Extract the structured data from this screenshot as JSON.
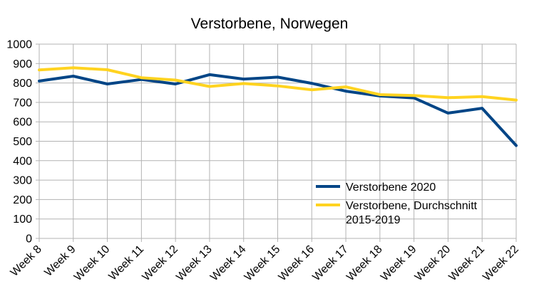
{
  "chart_data": {
    "type": "line",
    "title": "Verstorbene, Norwegen",
    "xlabel": "",
    "ylabel": "",
    "categories": [
      "Week 8",
      "Week 9",
      "Week 10",
      "Week 11",
      "Week 12",
      "Week 13",
      "Week 14",
      "Week 15",
      "Week 16",
      "Week 17",
      "Week 18",
      "Week 19",
      "Week 20",
      "Week 21",
      "Week 22"
    ],
    "ylim": [
      0,
      1000
    ],
    "yticks": [
      "0",
      "100",
      "200",
      "300",
      "400",
      "500",
      "600",
      "700",
      "800",
      "900",
      "1000"
    ],
    "grid": true,
    "legend_position": "bottom-right",
    "series": [
      {
        "name": "Verstorbene 2020",
        "color": "#004586",
        "values": [
          810,
          835,
          795,
          818,
          795,
          843,
          820,
          830,
          798,
          758,
          733,
          723,
          645,
          670,
          478
        ]
      },
      {
        "name": "Verstorbene, Durchschnitt 2015-2019",
        "name_lines": [
          "Verstorbene, Durchschnitt",
          "2015-2019"
        ],
        "color": "#ffd320",
        "values": [
          867,
          878,
          868,
          827,
          815,
          782,
          797,
          785,
          765,
          780,
          740,
          735,
          724,
          730,
          712
        ]
      }
    ]
  }
}
